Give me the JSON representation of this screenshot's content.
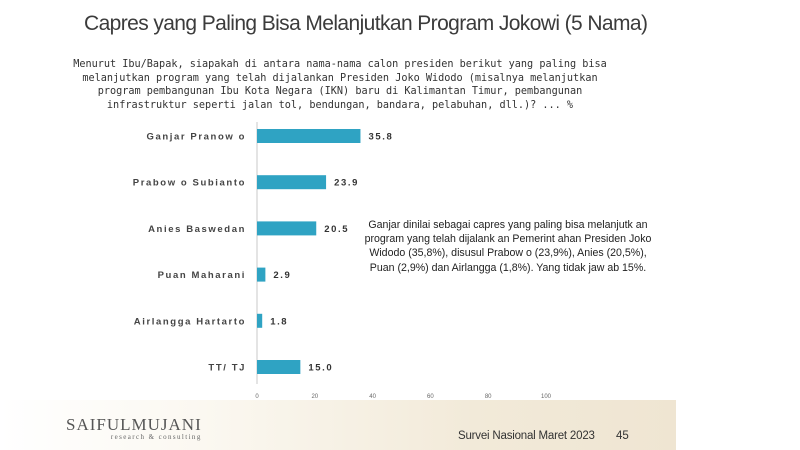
{
  "title": "Capres yang Paling Bisa Melanjutkan Program Jokowi (5 Nama)",
  "question": "Menurut Ibu/Bapak, siapakah di antara nama-nama calon presiden berikut yang paling bisa melanjutkan program yang telah dijalankan Presiden Joko Widodo (misalnya melanjutkan program pembangunan Ibu Kota Negara (IKN) baru di Kalimantan Timur, pembangunan infrastruktur seperti jalan tol, bendungan, bandara, pelabuhan, dll.)? ... %",
  "annotation": "Ganjar dinilai sebagai capres yang paling bisa melanjutk an program yang telah dijalank an Pemerint ahan Presiden Joko Widodo (35,8%), disusul Prabow o (23,9%), Anies (20,5%), Puan (2,9%) dan Airlangga (1,8%). Yang tidak jaw ab 15%.",
  "footer": {
    "logo_main": "SAIFULMUJANI",
    "logo_sub": "research & consulting",
    "survey": "Survei Nasional Maret 2023",
    "page_number": "45"
  },
  "colors": {
    "bar": "#2fa3c3",
    "axis": "#c8c8c8"
  },
  "chart_data": {
    "type": "bar",
    "orientation": "horizontal",
    "categories": [
      "Ganjar Pranow o",
      "Prabow o Subianto",
      "Anies Baswedan",
      "Puan Maharani",
      "Airlangga Hartarto",
      "TT/ TJ"
    ],
    "values": [
      35.8,
      23.9,
      20.5,
      2.9,
      1.8,
      15.0
    ],
    "value_labels": [
      "35.8",
      "23.9",
      "20.5",
      "2.9",
      "1.8",
      "15.0"
    ],
    "xlim": [
      0,
      100
    ],
    "xticks": [
      "0",
      "20",
      "40",
      "60",
      "80",
      "100"
    ],
    "grid": false,
    "legend": "none"
  }
}
